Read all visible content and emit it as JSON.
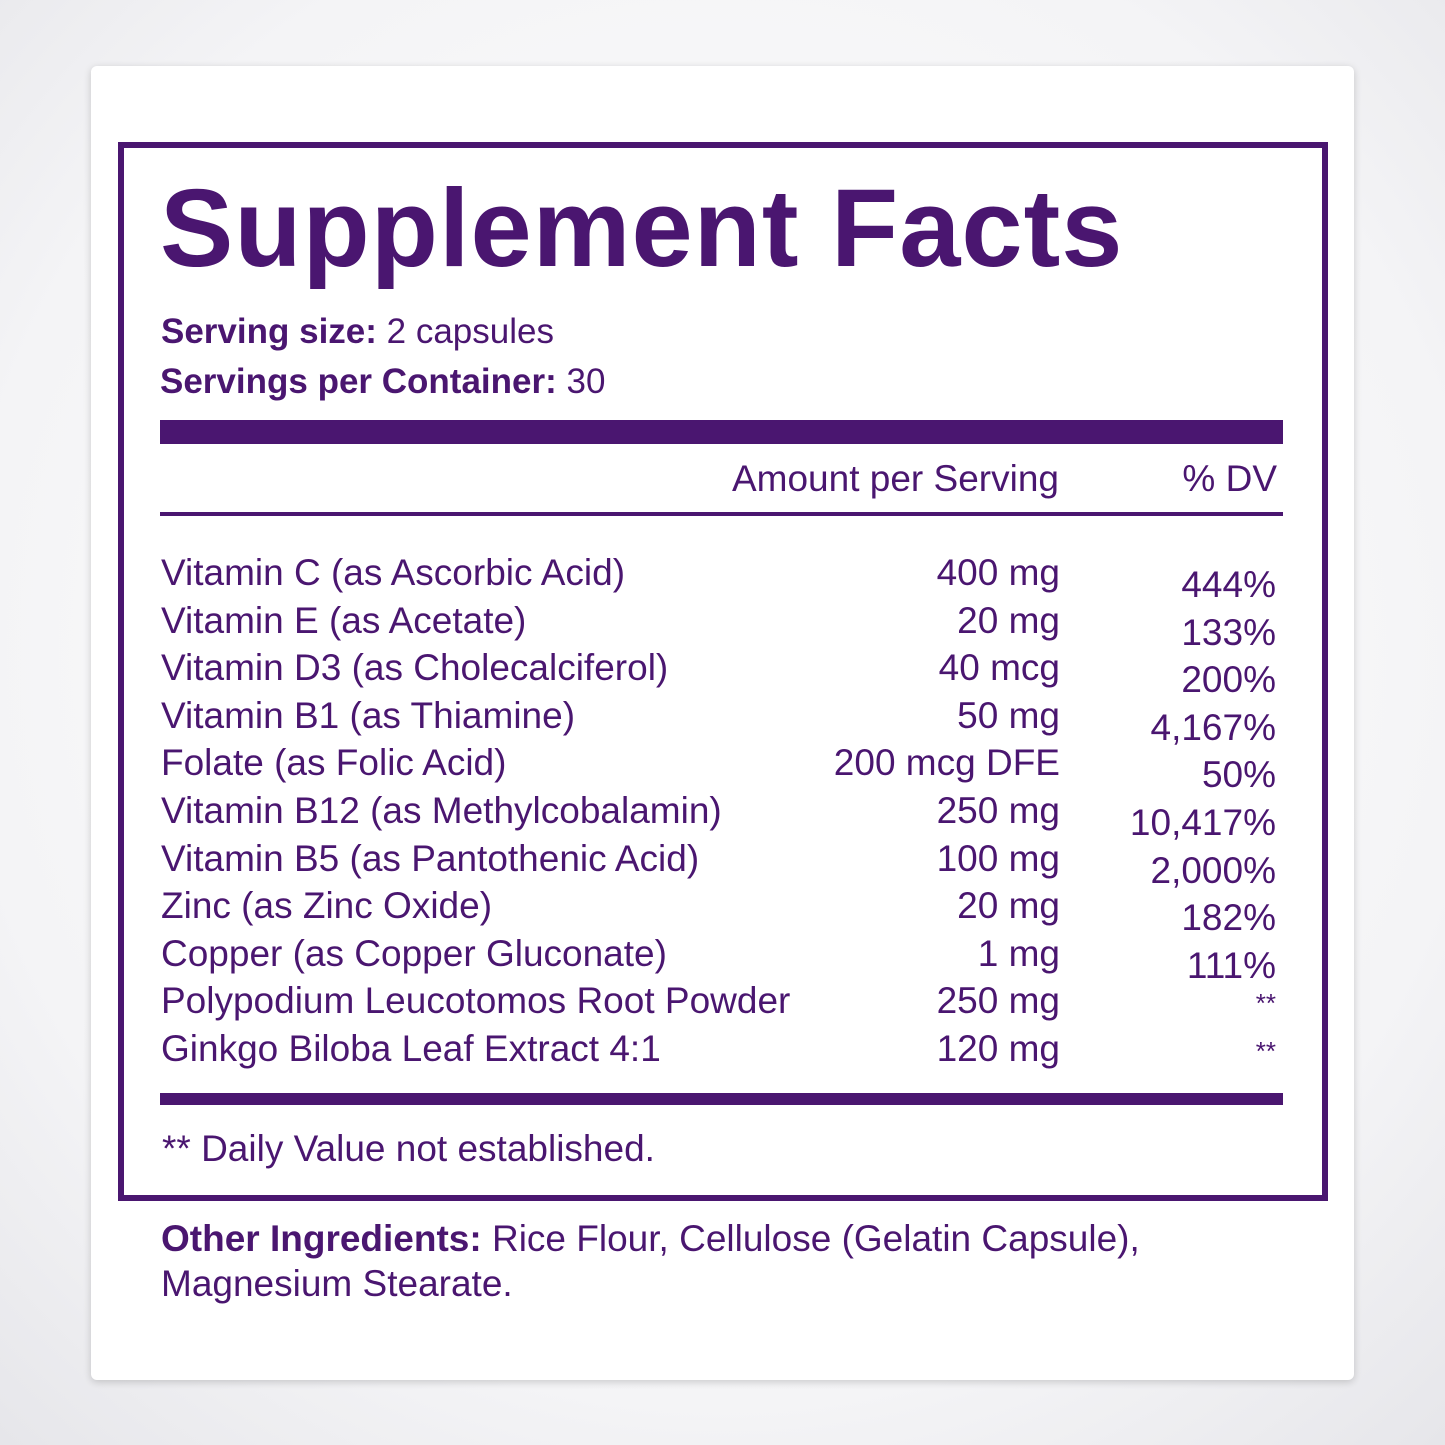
{
  "title": "Supplement Facts",
  "serving": {
    "size_label": "Serving size:",
    "size_value": "2 capsules",
    "per_label": "Servings per Container:",
    "per_value": "30"
  },
  "table": {
    "header": {
      "amount": "Amount per Serving",
      "dv": "% DV"
    },
    "rows": [
      [
        "Vitamin C (as Ascorbic Acid)",
        "400 mg",
        "444%"
      ],
      [
        "Vitamin E (as Acetate)",
        "20 mg",
        "133%"
      ],
      [
        "Vitamin D3 (as Cholecalciferol)",
        "40 mcg",
        "200%"
      ],
      [
        "Vitamin B1 (as Thiamine)",
        "50 mg",
        "4,167%"
      ],
      [
        "Folate (as Folic Acid)",
        "200 mcg DFE",
        "50%"
      ],
      [
        "Vitamin B12 (as Methylcobalamin)",
        "250 mg",
        "10,417%"
      ],
      [
        "Vitamin B5 (as Pantothenic Acid)",
        "100 mg",
        "2,000%"
      ],
      [
        "Zinc (as Zinc Oxide)",
        "20 mg",
        "182%"
      ],
      [
        "Copper (as Copper Gluconate)",
        "1 mg",
        "111%"
      ],
      [
        "Polypodium Leucotomos Root Powder",
        "250 mg",
        "**"
      ],
      [
        "Ginkgo Biloba Leaf Extract 4:1",
        "120 mg",
        "**"
      ]
    ]
  },
  "footnote": "** Daily Value not established.",
  "other": {
    "label": "Other Ingredients:",
    "text": "Rice Flour, Cellulose (Gelatin Capsule), Magnesium Stearate."
  }
}
